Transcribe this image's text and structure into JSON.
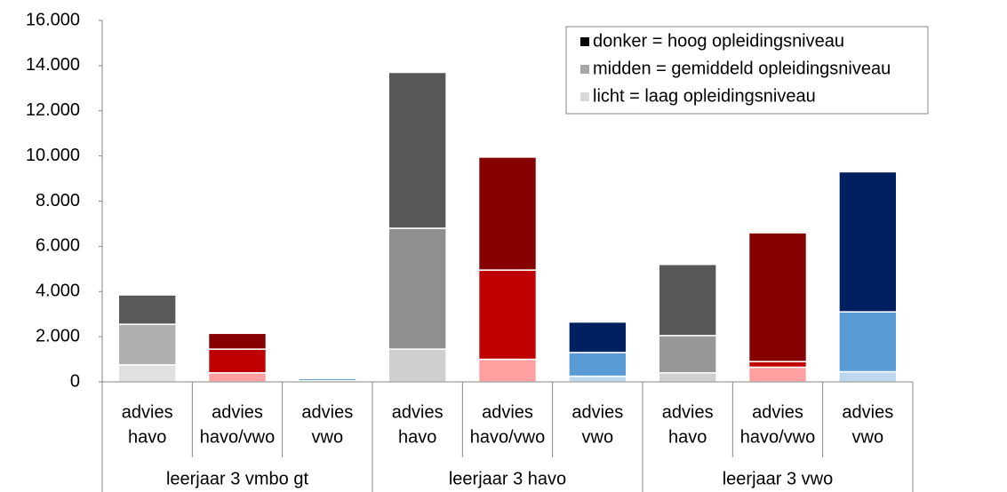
{
  "chart_data": {
    "type": "stacked-bar",
    "categories": [
      [
        "advies",
        "havo"
      ],
      [
        "advies",
        "havo/vwo"
      ],
      [
        "advies",
        "vwo"
      ],
      [
        "advies",
        "havo"
      ],
      [
        "advies",
        "havo/vwo"
      ],
      [
        "advies",
        "vwo"
      ],
      [
        "advies",
        "havo"
      ],
      [
        "advies",
        "havo/vwo"
      ],
      [
        "advies",
        "vwo"
      ]
    ],
    "groups": [
      "leerjaar 3 vmbo gt",
      "leerjaar 3 havo",
      "leerjaar 3 vwo"
    ],
    "series": [
      {
        "name": "licht = laag opleidingsniveau",
        "color": "#d9d9d9",
        "colors": [
          "#e0e0e0",
          "#ff9f9f",
          "#bdd7ee",
          "#cfcfcf",
          "#ff9f9f",
          "#bdd7ee",
          "#d0d0d0",
          "#ff9f9f",
          "#bdd7ee"
        ],
        "values": [
          750,
          400,
          50,
          1450,
          1000,
          250,
          400,
          650,
          450
        ]
      },
      {
        "name": "midden = gemiddeld opleidingsniveau",
        "color": "#a6a6a6",
        "colors": [
          "#b0b0b0",
          "#c00000",
          "#5b9bd5",
          "#8f8f8f",
          "#c00000",
          "#5b9bd5",
          "#979797",
          "#c00000",
          "#5b9bd5"
        ],
        "values": [
          1800,
          1050,
          100,
          5350,
          3950,
          1050,
          1650,
          250,
          2650
        ]
      },
      {
        "name": "donker = hoog opleidingsniveau",
        "color": "#000000",
        "colors": [
          "#595959",
          "#860000",
          "#002060",
          "#575757",
          "#860000",
          "#002060",
          "#575757",
          "#860000",
          "#002060"
        ],
        "values": [
          1300,
          700,
          50,
          6900,
          5000,
          1350,
          3150,
          5700,
          6200
        ]
      }
    ],
    "ylim": [
      0,
      16000
    ],
    "yticks": [
      0,
      {
        "value": 2000,
        "label": "2.000"
      },
      {
        "value": 4000,
        "label": "4.000"
      },
      {
        "value": 6000,
        "label": "6.000"
      },
      {
        "value": 8000,
        "label": "8.000"
      },
      {
        "value": 10000,
        "label": "10.000"
      },
      {
        "value": 12000,
        "label": "12.000"
      },
      {
        "value": 14000,
        "label": "14.000"
      },
      {
        "value": 16000,
        "label": "16.000"
      }
    ],
    "legend": "top-right"
  }
}
